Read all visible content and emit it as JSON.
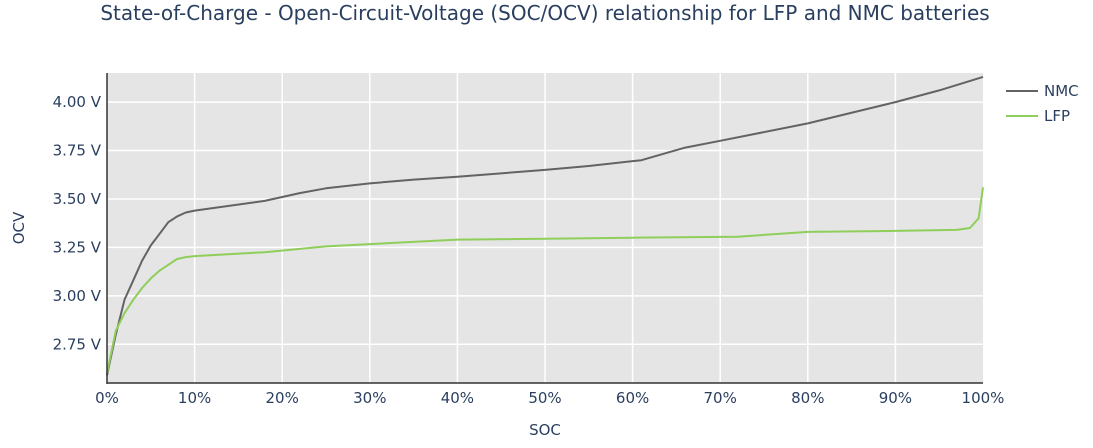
{
  "chart_data": {
    "type": "line",
    "title": "State-of-Charge - Open-Circuit-Voltage (SOC/OCV) relationship for LFP and NMC batteries",
    "xlabel": "SOC",
    "ylabel": "OCV",
    "xlim": [
      0,
      100
    ],
    "ylim": [
      2.55,
      4.15
    ],
    "x_ticks": [
      0,
      10,
      20,
      30,
      40,
      50,
      60,
      70,
      80,
      90,
      100
    ],
    "x_tick_labels": [
      "0%",
      "10%",
      "20%",
      "30%",
      "40%",
      "50%",
      "60%",
      "70%",
      "80%",
      "90%",
      "100%"
    ],
    "y_ticks": [
      2.75,
      3.0,
      3.25,
      3.5,
      3.75,
      4.0
    ],
    "y_tick_labels": [
      "2.75 V",
      "3.00 V",
      "3.25 V",
      "3.50 V",
      "3.75 V",
      "4.00 V"
    ],
    "grid": true,
    "legend_position": "top-right",
    "background": "#e5e5e5",
    "series": [
      {
        "name": "NMC",
        "color": "#636363",
        "x": [
          0,
          1,
          2,
          3,
          4,
          5,
          6,
          7,
          8,
          9,
          10,
          18,
          22,
          25,
          30,
          35,
          40,
          50,
          55,
          61,
          66,
          70,
          80,
          90,
          95,
          100
        ],
        "y": [
          2.59,
          2.8,
          2.98,
          3.08,
          3.18,
          3.26,
          3.32,
          3.38,
          3.41,
          3.43,
          3.44,
          3.49,
          3.53,
          3.555,
          3.58,
          3.6,
          3.615,
          3.65,
          3.67,
          3.7,
          3.765,
          3.8,
          3.89,
          4.0,
          4.06,
          4.13
        ]
      },
      {
        "name": "LFP",
        "color": "#8fce5a",
        "x": [
          0,
          1,
          2,
          3,
          4,
          5,
          6,
          7,
          8,
          9,
          10,
          18,
          25,
          40,
          50,
          60,
          72,
          80,
          90,
          97,
          98.5,
          99.5,
          100
        ],
        "y": [
          2.6,
          2.82,
          2.91,
          2.98,
          3.04,
          3.09,
          3.13,
          3.16,
          3.19,
          3.2,
          3.205,
          3.225,
          3.255,
          3.29,
          3.295,
          3.3,
          3.305,
          3.33,
          3.335,
          3.34,
          3.35,
          3.4,
          3.56
        ]
      }
    ]
  }
}
